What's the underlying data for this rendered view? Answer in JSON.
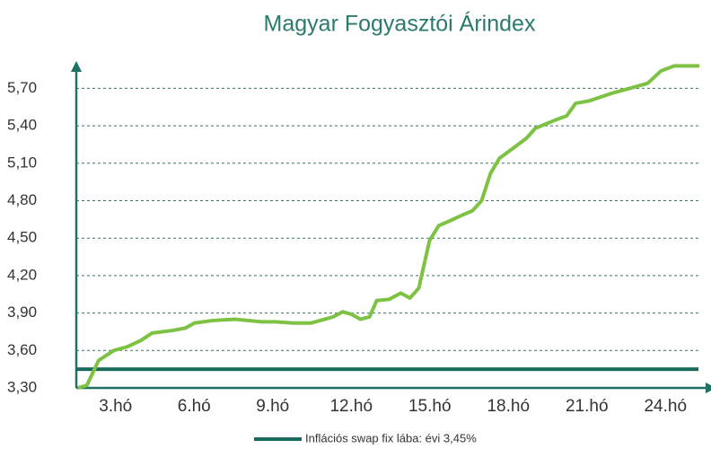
{
  "chart_data": {
    "type": "line",
    "title": "Magyar Fogyasztói Árindex",
    "x": [
      1.56,
      1.9,
      2.35,
      2.93,
      3.45,
      3.96,
      4.4,
      5.16,
      5.67,
      6.01,
      6.7,
      7.56,
      8.07,
      8.58,
      9.1,
      9.78,
      10.47,
      10.98,
      11.32,
      11.67,
      12.01,
      12.35,
      12.7,
      12.97,
      13.45,
      13.89,
      14.24,
      14.58,
      14.99,
      15.34,
      15.78,
      16.19,
      16.63,
      16.98,
      17.32,
      17.66,
      18.18,
      18.69,
      19.03,
      19.72,
      20.23,
      20.57,
      21.09,
      21.94,
      22.63,
      23.32,
      23.83,
      24.34,
      25.3
    ],
    "series": [
      {
        "color": "#7dc242",
        "values": [
          3.3,
          3.32,
          3.52,
          3.6,
          3.63,
          3.68,
          3.74,
          3.76,
          3.78,
          3.82,
          3.84,
          3.85,
          3.84,
          3.83,
          3.83,
          3.82,
          3.82,
          3.85,
          3.87,
          3.91,
          3.89,
          3.85,
          3.87,
          4.0,
          4.01,
          4.06,
          4.02,
          4.1,
          4.48,
          4.6,
          4.64,
          4.68,
          4.72,
          4.8,
          5.02,
          5.14,
          5.22,
          5.3,
          5.38,
          5.44,
          5.48,
          5.58,
          5.6,
          5.66,
          5.7,
          5.74,
          5.84,
          5.88,
          5.88
        ]
      }
    ],
    "reference_line": {
      "name": "Inflációs swap fix lába: évi 3,45%",
      "value": 3.45,
      "color": "#1a6b5e"
    },
    "xlim": [
      1.5,
      25.5
    ],
    "xticks": [
      {
        "value": 3,
        "label": "3.hó"
      },
      {
        "value": 6,
        "label": "6.hó"
      },
      {
        "value": 9,
        "label": "9.hó"
      },
      {
        "value": 12,
        "label": "12.hó"
      },
      {
        "value": 15,
        "label": "15.hó"
      },
      {
        "value": 18,
        "label": "18.hó"
      },
      {
        "value": 21,
        "label": "21.hó"
      },
      {
        "value": 24,
        "label": "24.hó"
      }
    ],
    "ylim": [
      3.3,
      5.9
    ],
    "yticks": [
      {
        "value": 3.3,
        "label": "3,30"
      },
      {
        "value": 3.6,
        "label": "3,60"
      },
      {
        "value": 3.9,
        "label": "3,90"
      },
      {
        "value": 4.2,
        "label": "4,20"
      },
      {
        "value": 4.5,
        "label": "4,50"
      },
      {
        "value": 4.8,
        "label": "4,80"
      },
      {
        "value": 5.1,
        "label": "5,10"
      },
      {
        "value": 5.4,
        "label": "5,40"
      },
      {
        "value": 5.7,
        "label": "5,70"
      }
    ],
    "grid": true
  }
}
